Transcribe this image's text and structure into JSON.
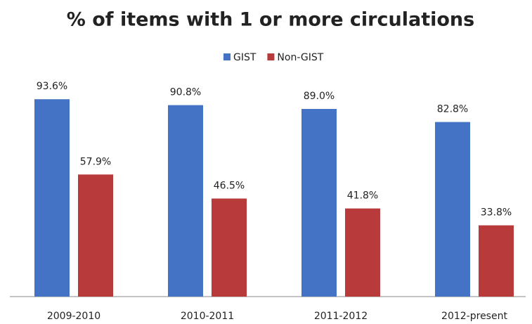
{
  "chart_data": {
    "type": "bar",
    "title": "% of items with 1 or more circulations",
    "categories": [
      "2009-2010",
      "2010-2011",
      "2011-2012",
      "2012-present"
    ],
    "series": [
      {
        "name": "GIST",
        "color": "#4472c4",
        "values": [
          93.6,
          90.8,
          89.0,
          82.8
        ],
        "value_labels": [
          "93.6%",
          "90.8%",
          "89.0%",
          "82.8%"
        ]
      },
      {
        "name": "Non-GIST",
        "color": "#b83a3a",
        "values": [
          57.9,
          46.5,
          41.8,
          33.8
        ],
        "value_labels": [
          "57.9%",
          "46.5%",
          "41.8%",
          "33.8%"
        ]
      }
    ],
    "ylim": [
      0,
      100
    ],
    "legend": "top"
  }
}
